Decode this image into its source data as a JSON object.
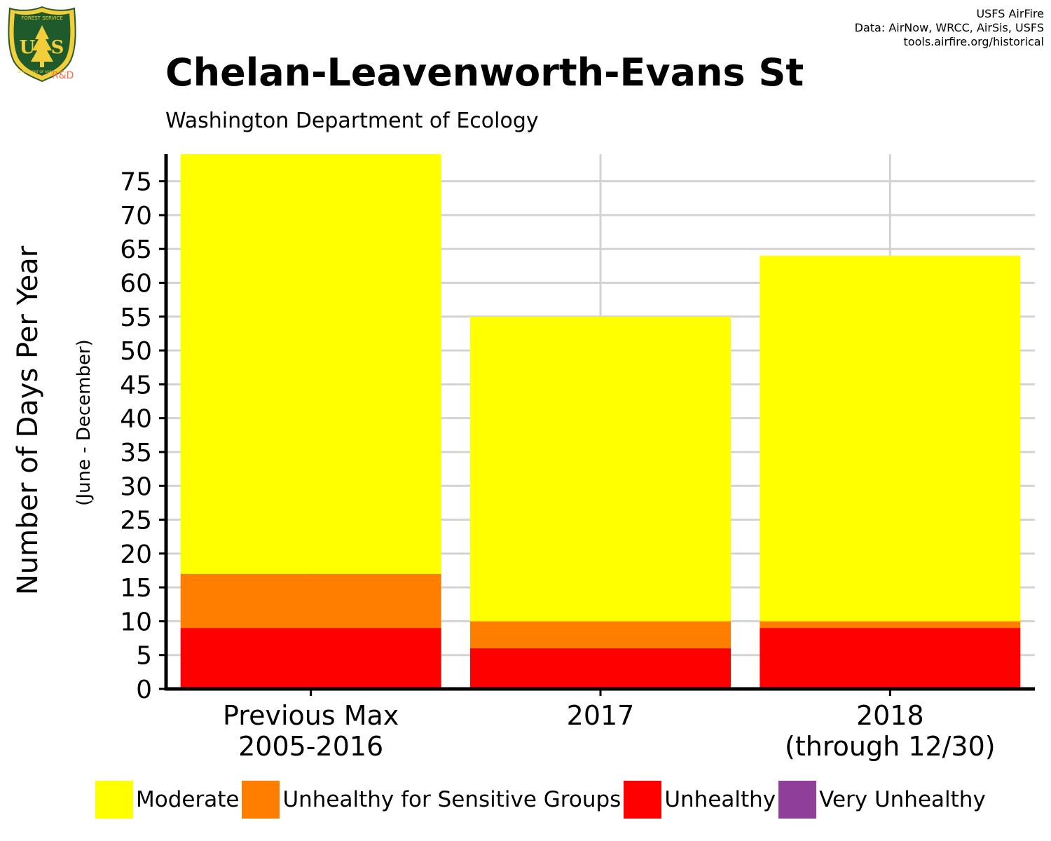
{
  "header": {
    "title": "Chelan-Leavenworth-Evans St",
    "subtitle": "Washington Department of Ecology",
    "credits": [
      "USFS AirFire",
      "Data: AirNow, WRCC, AirSis, USFS",
      "tools.airfire.org/historical"
    ]
  },
  "logo": {
    "top_text": "FOREST SERVICE",
    "main_text": "US",
    "bottom_text": "DEPARTMENT OF AGRICULTURE",
    "tag": "R&D",
    "icon": "usfs-shield-icon"
  },
  "chart_data": {
    "type": "bar",
    "stacked": true,
    "title": "Chelan-Leavenworth-Evans St",
    "subtitle": "Washington Department of Ecology",
    "xlabel": "",
    "ylabel": "Number of Days Per Year",
    "ylabel_sub": "(June - December)",
    "ylim": [
      0,
      79
    ],
    "yticks": [
      0,
      5,
      10,
      15,
      20,
      25,
      30,
      35,
      40,
      45,
      50,
      55,
      60,
      65,
      70,
      75
    ],
    "grid": true,
    "legend_position": "bottom",
    "categories": [
      [
        "Previous Max",
        "2005-2016"
      ],
      [
        "2017"
      ],
      [
        "2018",
        "(through 12/30)"
      ]
    ],
    "series": [
      {
        "name": "Unhealthy",
        "color": "#ff0000",
        "values": [
          9,
          6,
          9
        ]
      },
      {
        "name": "Unhealthy for Sensitive Groups",
        "color": "#ff7e00",
        "values": [
          8,
          4,
          1
        ]
      },
      {
        "name": "Moderate",
        "color": "#ffff00",
        "values": [
          62,
          45,
          54
        ]
      },
      {
        "name": "Very Unhealthy",
        "color": "#8f3f97",
        "values": [
          0,
          0,
          0
        ]
      }
    ],
    "legend": [
      {
        "name": "Moderate",
        "color": "#ffff00"
      },
      {
        "name": "Unhealthy for Sensitive Groups",
        "color": "#ff7e00"
      },
      {
        "name": "Unhealthy",
        "color": "#ff0000"
      },
      {
        "name": "Very Unhealthy",
        "color": "#8f3f97"
      }
    ]
  }
}
